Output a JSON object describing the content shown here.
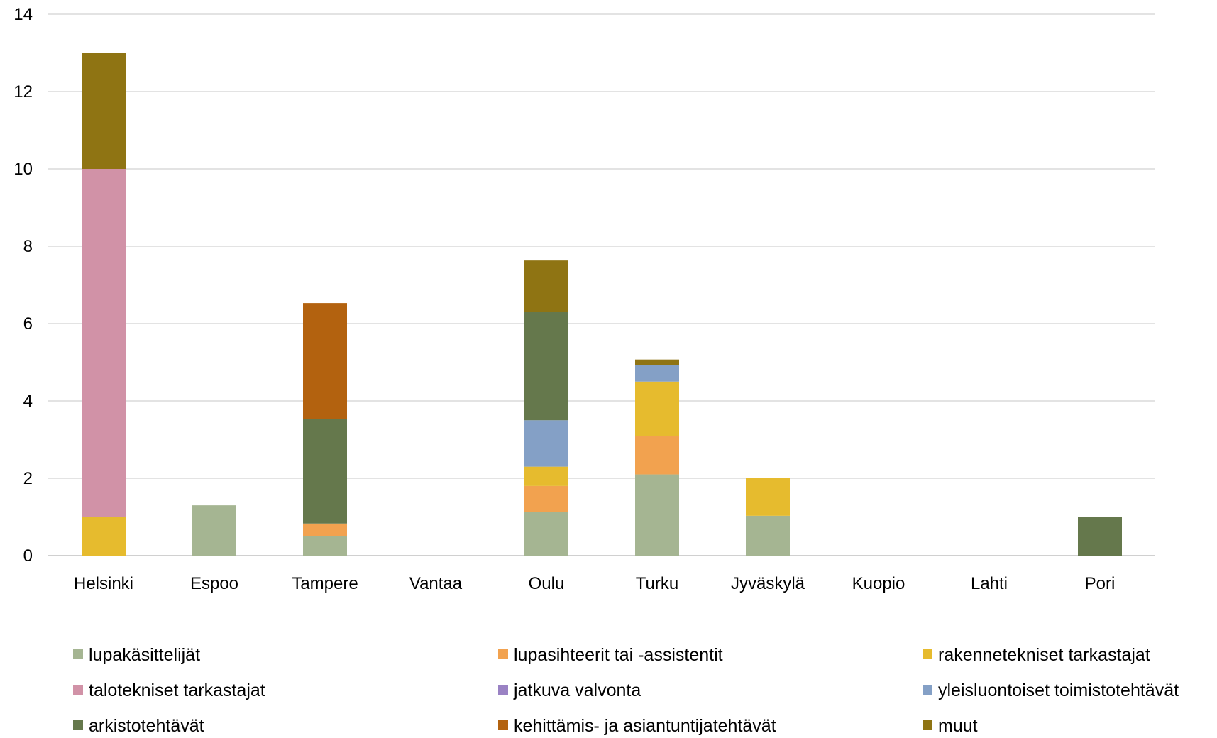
{
  "chart_data": {
    "type": "bar",
    "stacked": true,
    "categories": [
      "Helsinki",
      "Espoo",
      "Tampere",
      "Vantaa",
      "Oulu",
      "Turku",
      "Jyväskylä",
      "Kuopio",
      "Lahti",
      "Pori"
    ],
    "ylim": [
      0,
      14
    ],
    "yticks": [
      "0",
      "2",
      "4",
      "6",
      "8",
      "10",
      "12",
      "14"
    ],
    "grid": true,
    "legend_position": "bottom",
    "series": [
      {
        "name": "lupakäsittelijät",
        "color": "#a5b592",
        "values": [
          0,
          1.3,
          0.5,
          0,
          1.13,
          2.1,
          1.03,
          0,
          0,
          0
        ]
      },
      {
        "name": "lupasihteerit tai -assistentit",
        "color": "#f2a24f",
        "values": [
          0,
          0,
          0.33,
          0,
          0.67,
          1.0,
          0,
          0,
          0,
          0
        ]
      },
      {
        "name": "rakennetekniset tarkastajat",
        "color": "#e6bb2e",
        "values": [
          1.0,
          0,
          0,
          0,
          0.5,
          1.4,
          0.97,
          0,
          0,
          0
        ]
      },
      {
        "name": "talotekniset tarkastajat",
        "color": "#d192a7",
        "values": [
          9.0,
          0,
          0,
          0,
          0,
          0,
          0,
          0,
          0,
          0
        ]
      },
      {
        "name": "jatkuva valvonta",
        "color": "#9a82c4",
        "values": [
          0,
          0,
          0,
          0,
          0,
          0,
          0,
          0,
          0,
          0
        ]
      },
      {
        "name": "yleisluontoiset toimistotehtävät",
        "color": "#84a0c6",
        "values": [
          0,
          0,
          0,
          0,
          1.2,
          0.43,
          0,
          0,
          0,
          0
        ]
      },
      {
        "name": "arkistotehtävät",
        "color": "#65784c",
        "values": [
          0,
          0,
          2.7,
          0,
          2.8,
          0,
          0,
          0,
          0,
          1.0
        ]
      },
      {
        "name": "kehittämis- ja asiantuntijatehtävät",
        "color": "#b3620f",
        "values": [
          0,
          0,
          3.0,
          0,
          0,
          0,
          0,
          0,
          0,
          0
        ]
      },
      {
        "name": "muut",
        "color": "#8f7413",
        "values": [
          3.0,
          0,
          0,
          0,
          1.33,
          0.14,
          0,
          0,
          0,
          0
        ]
      }
    ]
  }
}
